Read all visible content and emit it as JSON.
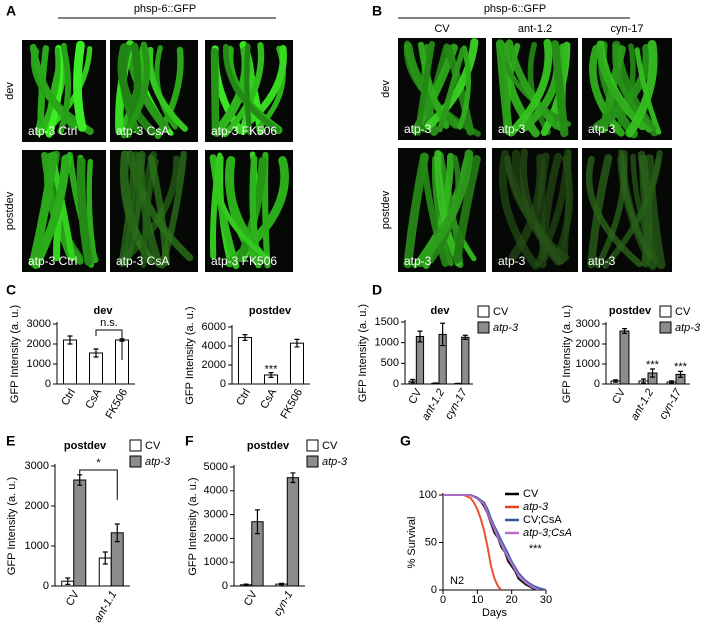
{
  "panel_a": {
    "label": "A",
    "title": "phsp-6::GFP",
    "rows": [
      "dev",
      "postdev"
    ],
    "captions": [
      [
        "atp-3 Ctrl",
        "atp-3 CsA",
        "atp-3 FK506"
      ],
      [
        "atp-3 Ctrl",
        "atp-3 CsA",
        "atp-3 FK506"
      ]
    ]
  },
  "panel_b": {
    "label": "B",
    "title": "phsp-6::GFP",
    "columns": [
      "CV",
      "ant-1.2",
      "cyn-17"
    ],
    "rows": [
      "dev",
      "postdev"
    ],
    "captions": [
      [
        "atp-3",
        "atp-3",
        "atp-3"
      ],
      [
        "atp-3",
        "atp-3",
        "atp-3"
      ]
    ]
  },
  "chart_data": [
    {
      "type": "bar",
      "panel_label": "C",
      "title": "dev",
      "y_label": "GFP Intensity (a. u.)",
      "categories": [
        "Ctrl",
        "CsA",
        "FK506"
      ],
      "values": [
        2200,
        1550,
        2200
      ],
      "errors": [
        200,
        200,
        60
      ],
      "color": "#ffffff",
      "ylim": [
        0,
        3000
      ],
      "yticks": [
        0,
        1000,
        2000,
        3000
      ],
      "annotations": [
        "n.s."
      ]
    },
    {
      "type": "bar",
      "title": "postdev",
      "y_label": "GFP Intensity (a. u.)",
      "categories": [
        "Ctrl",
        "CsA",
        "FK506"
      ],
      "values": [
        4900,
        950,
        4300
      ],
      "errors": [
        300,
        250,
        400
      ],
      "color": "#ffffff",
      "ylim": [
        0,
        6000
      ],
      "yticks": [
        0,
        2000,
        4000,
        6000
      ],
      "annotations": [
        "***"
      ]
    },
    {
      "type": "bar",
      "panel_label": "D",
      "title": "dev",
      "y_label": "GFP Intensity (a. u.)",
      "categories": [
        "CV",
        "ant-1.2",
        "cyn-17"
      ],
      "series": [
        {
          "name": "CV",
          "color": "#ffffff",
          "values": [
            70,
            15,
            10
          ],
          "errors": [
            40,
            10,
            5
          ]
        },
        {
          "name": "atp-3",
          "color": "#8c8c8c",
          "values": [
            1150,
            1200,
            1130
          ],
          "errors": [
            130,
            270,
            50
          ]
        }
      ],
      "ylim": [
        0,
        1500
      ],
      "yticks": [
        0,
        500,
        1000,
        1500
      ]
    },
    {
      "type": "bar",
      "title": "postdev",
      "y_label": "GFP Intensity (a. u.)",
      "categories": [
        "CV",
        "ant-1.2",
        "cyn-17"
      ],
      "series": [
        {
          "name": "CV",
          "color": "#ffffff",
          "values": [
            150,
            150,
            100
          ],
          "errors": [
            60,
            100,
            60
          ]
        },
        {
          "name": "atp-3",
          "color": "#8c8c8c",
          "values": [
            2650,
            550,
            480
          ],
          "errors": [
            120,
            200,
            150
          ]
        }
      ],
      "ylim": [
        0,
        3000
      ],
      "yticks": [
        0,
        1000,
        2000,
        3000
      ],
      "annotations": [
        "***",
        "***"
      ]
    },
    {
      "type": "bar",
      "panel_label": "E",
      "title": "postdev",
      "y_label": "GFP Intensity (a. u.)",
      "categories": [
        "CV",
        "ant-1.1"
      ],
      "series": [
        {
          "name": "CV",
          "color": "#ffffff",
          "values": [
            120,
            700
          ],
          "errors": [
            80,
            150
          ]
        },
        {
          "name": "atp-3",
          "color": "#8c8c8c",
          "values": [
            2650,
            1330
          ],
          "errors": [
            130,
            220
          ]
        }
      ],
      "ylim": [
        0,
        3000
      ],
      "yticks": [
        0,
        1000,
        2000,
        3000
      ],
      "annotations": [
        "*"
      ]
    },
    {
      "type": "bar",
      "panel_label": "F",
      "title": "postdev",
      "y_label": "GFP Intensity (a. u.)",
      "categories": [
        "CV",
        "cyn-1"
      ],
      "series": [
        {
          "name": "CV",
          "color": "#ffffff",
          "values": [
            50,
            80
          ],
          "errors": [
            30,
            30
          ]
        },
        {
          "name": "atp-3",
          "color": "#8c8c8c",
          "values": [
            2700,
            4550
          ],
          "errors": [
            500,
            200
          ]
        }
      ],
      "ylim": [
        0,
        5000
      ],
      "yticks": [
        0,
        1000,
        2000,
        3000,
        4000,
        5000
      ]
    },
    {
      "type": "line",
      "panel_label": "G",
      "y_label": "% Survival",
      "x_label": "Days",
      "series": [
        {
          "name": "CV",
          "color": "#000000",
          "x": [
            0,
            8,
            10,
            11,
            12,
            13,
            14,
            15,
            16,
            17,
            18,
            19,
            20,
            21,
            22,
            24,
            26,
            28
          ],
          "values": [
            100,
            100,
            97,
            93,
            88,
            80,
            70,
            60,
            55,
            45,
            40,
            30,
            25,
            20,
            12,
            6,
            2,
            0
          ]
        },
        {
          "name": "atp-3",
          "color": "#e8401c",
          "x": [
            0,
            6,
            8,
            9,
            10,
            11,
            12,
            13,
            14,
            15,
            16,
            17
          ],
          "values": [
            100,
            100,
            97,
            92,
            85,
            75,
            62,
            45,
            25,
            12,
            4,
            0
          ]
        },
        {
          "name": "CV;CsA",
          "color": "#3b55a5",
          "x": [
            0,
            8,
            10,
            12,
            13,
            14,
            15,
            16,
            17,
            18,
            19,
            20,
            22,
            24,
            26,
            28,
            30
          ],
          "values": [
            100,
            100,
            97,
            92,
            85,
            75,
            67,
            60,
            52,
            45,
            38,
            30,
            18,
            10,
            5,
            2,
            0
          ]
        },
        {
          "name": "atp-3;CsA",
          "color": "#b56fc9",
          "x": [
            0,
            8,
            10,
            12,
            13,
            14,
            15,
            16,
            17,
            18,
            20,
            22,
            24,
            26,
            28
          ],
          "values": [
            100,
            100,
            96,
            90,
            80,
            72,
            64,
            55,
            48,
            40,
            28,
            15,
            8,
            3,
            0
          ]
        }
      ],
      "xlim": [
        0,
        30
      ],
      "xticks": [
        0,
        10,
        20,
        30
      ],
      "ylim": [
        0,
        100
      ],
      "yticks": [
        0,
        50,
        100
      ],
      "annotations": [
        "N2",
        "***"
      ]
    }
  ]
}
